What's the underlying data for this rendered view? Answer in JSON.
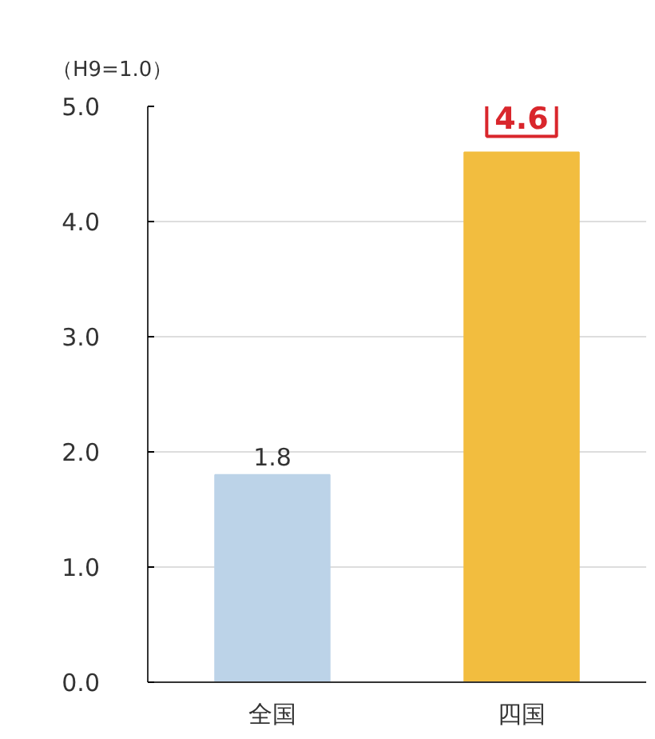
{
  "chart_data": {
    "type": "bar",
    "title": "（H9=1.0）",
    "categories": [
      "全国",
      "四国"
    ],
    "values": [
      1.8,
      4.6
    ],
    "colors": [
      "#bcd3e8",
      "#f2bd3f"
    ],
    "data_labels": true,
    "ylim": [
      0,
      5
    ],
    "yticks": [
      {
        "value": 0,
        "label": "0.0"
      },
      {
        "value": 1,
        "label": "1.0"
      },
      {
        "value": 2,
        "label": "2.0"
      },
      {
        "value": 3,
        "label": "3.0"
      },
      {
        "value": 4,
        "label": "4.0"
      },
      {
        "value": 5,
        "label": "5.0"
      }
    ],
    "grid": "y"
  }
}
